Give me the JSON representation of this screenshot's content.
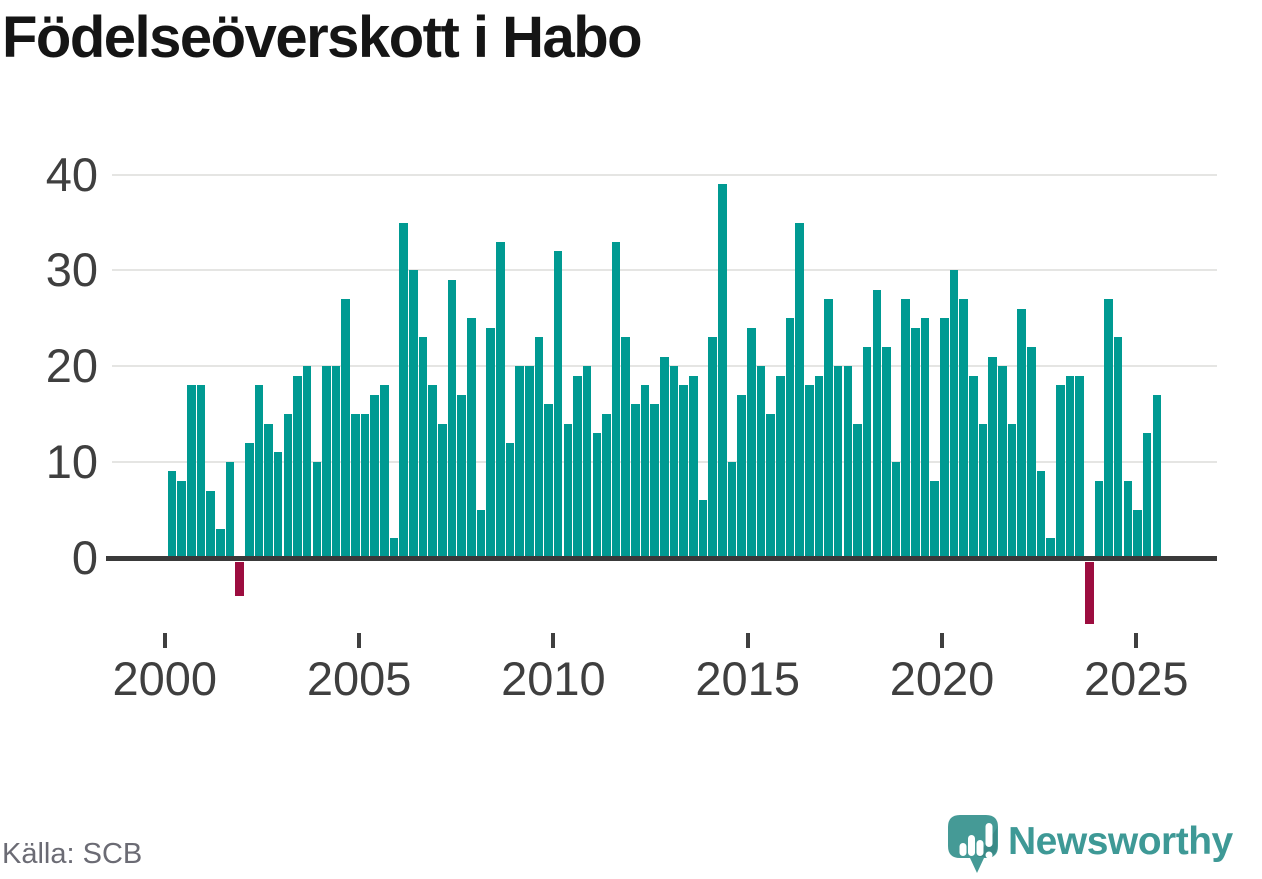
{
  "title": "Födelseöverskott i Habo",
  "source": "Källa: SCB",
  "logo": {
    "wordmark": "Newsworthy",
    "icon": "newsworthy-speech-bubble-chart-icon"
  },
  "colors": {
    "positive_bar": "#009a92",
    "negative_bar": "#9c0d3f",
    "axis_line": "#3a3a3a",
    "gridline": "#e5e5e3",
    "tick_text": "#3f3f3f",
    "title_text": "#151515",
    "source_text": "#6b6b74",
    "brand_teal": "#3e9996"
  },
  "chart_data": {
    "type": "bar",
    "title": "Födelseöverskott i Habo",
    "xlabel": "",
    "ylabel": "",
    "x_unit": "quarter",
    "start": "2000 Q1",
    "end": "2025 Q3",
    "ylim": [
      -10,
      42
    ],
    "y_ticks": [
      0,
      10,
      20,
      30,
      40
    ],
    "x_ticks": [
      "2000",
      "2005",
      "2010",
      "2015",
      "2020",
      "2025"
    ],
    "grid": true,
    "legend": "none",
    "years": [
      {
        "year": "2000",
        "quarters": [
          9,
          8,
          18,
          18
        ]
      },
      {
        "year": "2001",
        "quarters": [
          7,
          3,
          10,
          -4
        ]
      },
      {
        "year": "2002",
        "quarters": [
          12,
          18,
          14,
          11
        ]
      },
      {
        "year": "2003",
        "quarters": [
          15,
          19,
          20,
          10
        ]
      },
      {
        "year": "2004",
        "quarters": [
          20,
          20,
          27,
          15
        ]
      },
      {
        "year": "2005",
        "quarters": [
          15,
          17,
          18,
          2
        ]
      },
      {
        "year": "2006",
        "quarters": [
          35,
          30,
          23,
          18
        ]
      },
      {
        "year": "2007",
        "quarters": [
          14,
          29,
          17,
          25
        ]
      },
      {
        "year": "2008",
        "quarters": [
          5,
          24,
          33,
          12
        ]
      },
      {
        "year": "2009",
        "quarters": [
          20,
          20,
          23,
          16
        ]
      },
      {
        "year": "2010",
        "quarters": [
          32,
          14,
          19,
          20
        ]
      },
      {
        "year": "2011",
        "quarters": [
          13,
          15,
          33,
          23
        ]
      },
      {
        "year": "2012",
        "quarters": [
          16,
          18,
          16,
          21
        ]
      },
      {
        "year": "2013",
        "quarters": [
          20,
          18,
          19,
          6
        ]
      },
      {
        "year": "2014",
        "quarters": [
          23,
          39,
          10,
          17
        ]
      },
      {
        "year": "2015",
        "quarters": [
          24,
          20,
          15,
          19
        ]
      },
      {
        "year": "2016",
        "quarters": [
          25,
          35,
          18,
          19
        ]
      },
      {
        "year": "2017",
        "quarters": [
          27,
          20,
          20,
          14
        ]
      },
      {
        "year": "2018",
        "quarters": [
          22,
          28,
          22,
          10
        ]
      },
      {
        "year": "2019",
        "quarters": [
          27,
          24,
          25,
          8
        ]
      },
      {
        "year": "2020",
        "quarters": [
          25,
          30,
          27,
          19
        ]
      },
      {
        "year": "2021",
        "quarters": [
          14,
          21,
          20,
          14
        ]
      },
      {
        "year": "2022",
        "quarters": [
          26,
          22,
          9,
          2
        ]
      },
      {
        "year": "2023",
        "quarters": [
          18,
          19,
          19,
          -7
        ]
      },
      {
        "year": "2024",
        "quarters": [
          8,
          27,
          23,
          8
        ]
      },
      {
        "year": "2025",
        "quarters": [
          5,
          13,
          17
        ]
      }
    ]
  }
}
